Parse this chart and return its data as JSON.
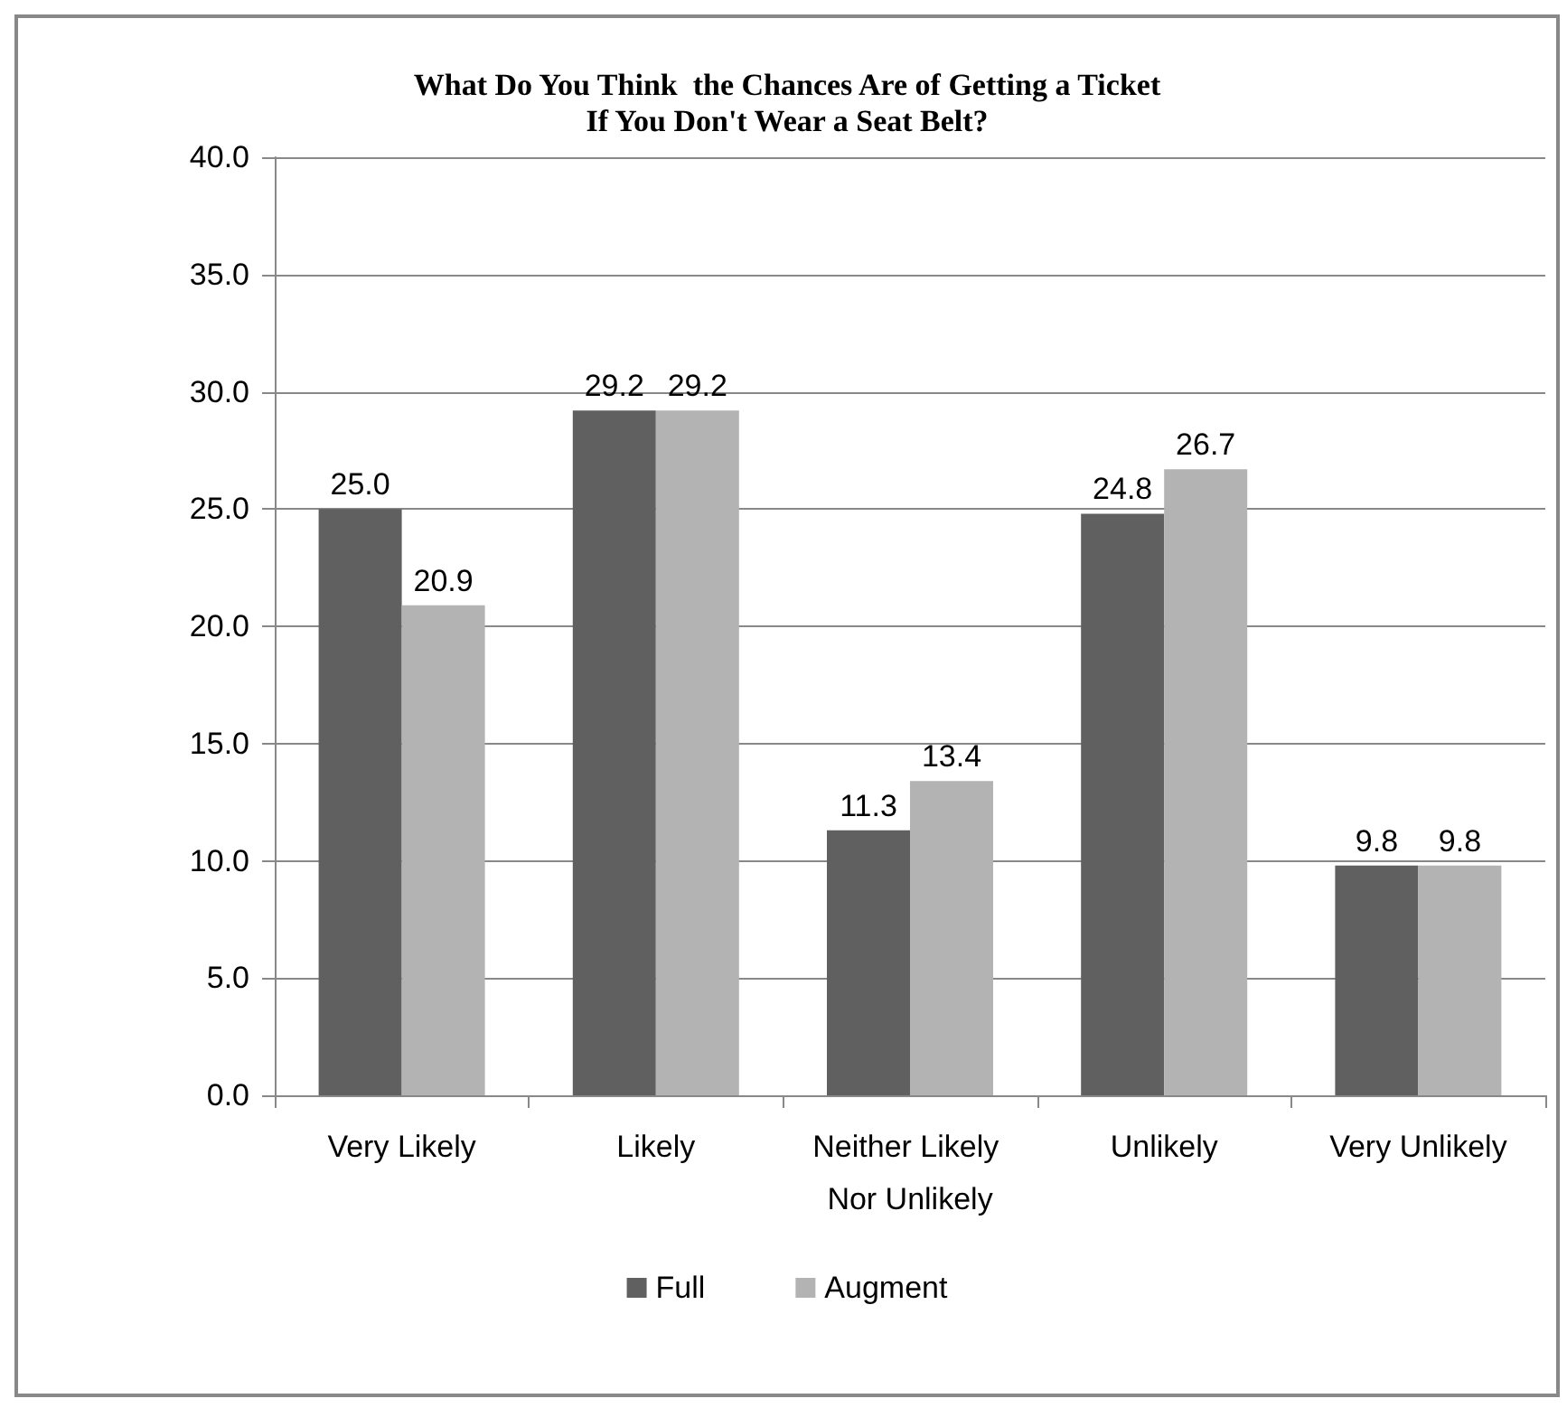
{
  "chart_data": {
    "type": "bar",
    "title": "What Do You Think  the Chances Are of Getting a Ticket\nIf You Don't Wear a Seat Belt?",
    "categories": [
      "Very Likely",
      "Likely",
      "Neither Likely Nor Unlikely",
      "Unlikely",
      "Very Unlikely"
    ],
    "series": [
      {
        "name": "Full",
        "color": "#606060",
        "values": [
          25.0,
          29.2,
          11.3,
          24.8,
          9.8
        ],
        "value_labels": [
          "25.0",
          "29.2",
          "11.3",
          "24.8",
          "9.8"
        ]
      },
      {
        "name": "Augment",
        "color": "#b3b3b3",
        "values": [
          20.9,
          29.2,
          13.4,
          26.7,
          9.8
        ],
        "value_labels": [
          "20.9",
          "29.2",
          "13.4",
          "26.7",
          "9.8"
        ]
      }
    ],
    "ylim": [
      0,
      40
    ],
    "yticks": [
      {
        "value": 0,
        "label": "0.0"
      },
      {
        "value": 5,
        "label": "5.0"
      },
      {
        "value": 10,
        "label": "10.0"
      },
      {
        "value": 15,
        "label": "15.0"
      },
      {
        "value": 20,
        "label": "20.0"
      },
      {
        "value": 25,
        "label": "25.0"
      },
      {
        "value": 30,
        "label": "30.0"
      },
      {
        "value": 35,
        "label": "35.0"
      },
      {
        "value": 40,
        "label": "40.0"
      }
    ],
    "grid": "y",
    "legend": "bottom"
  }
}
